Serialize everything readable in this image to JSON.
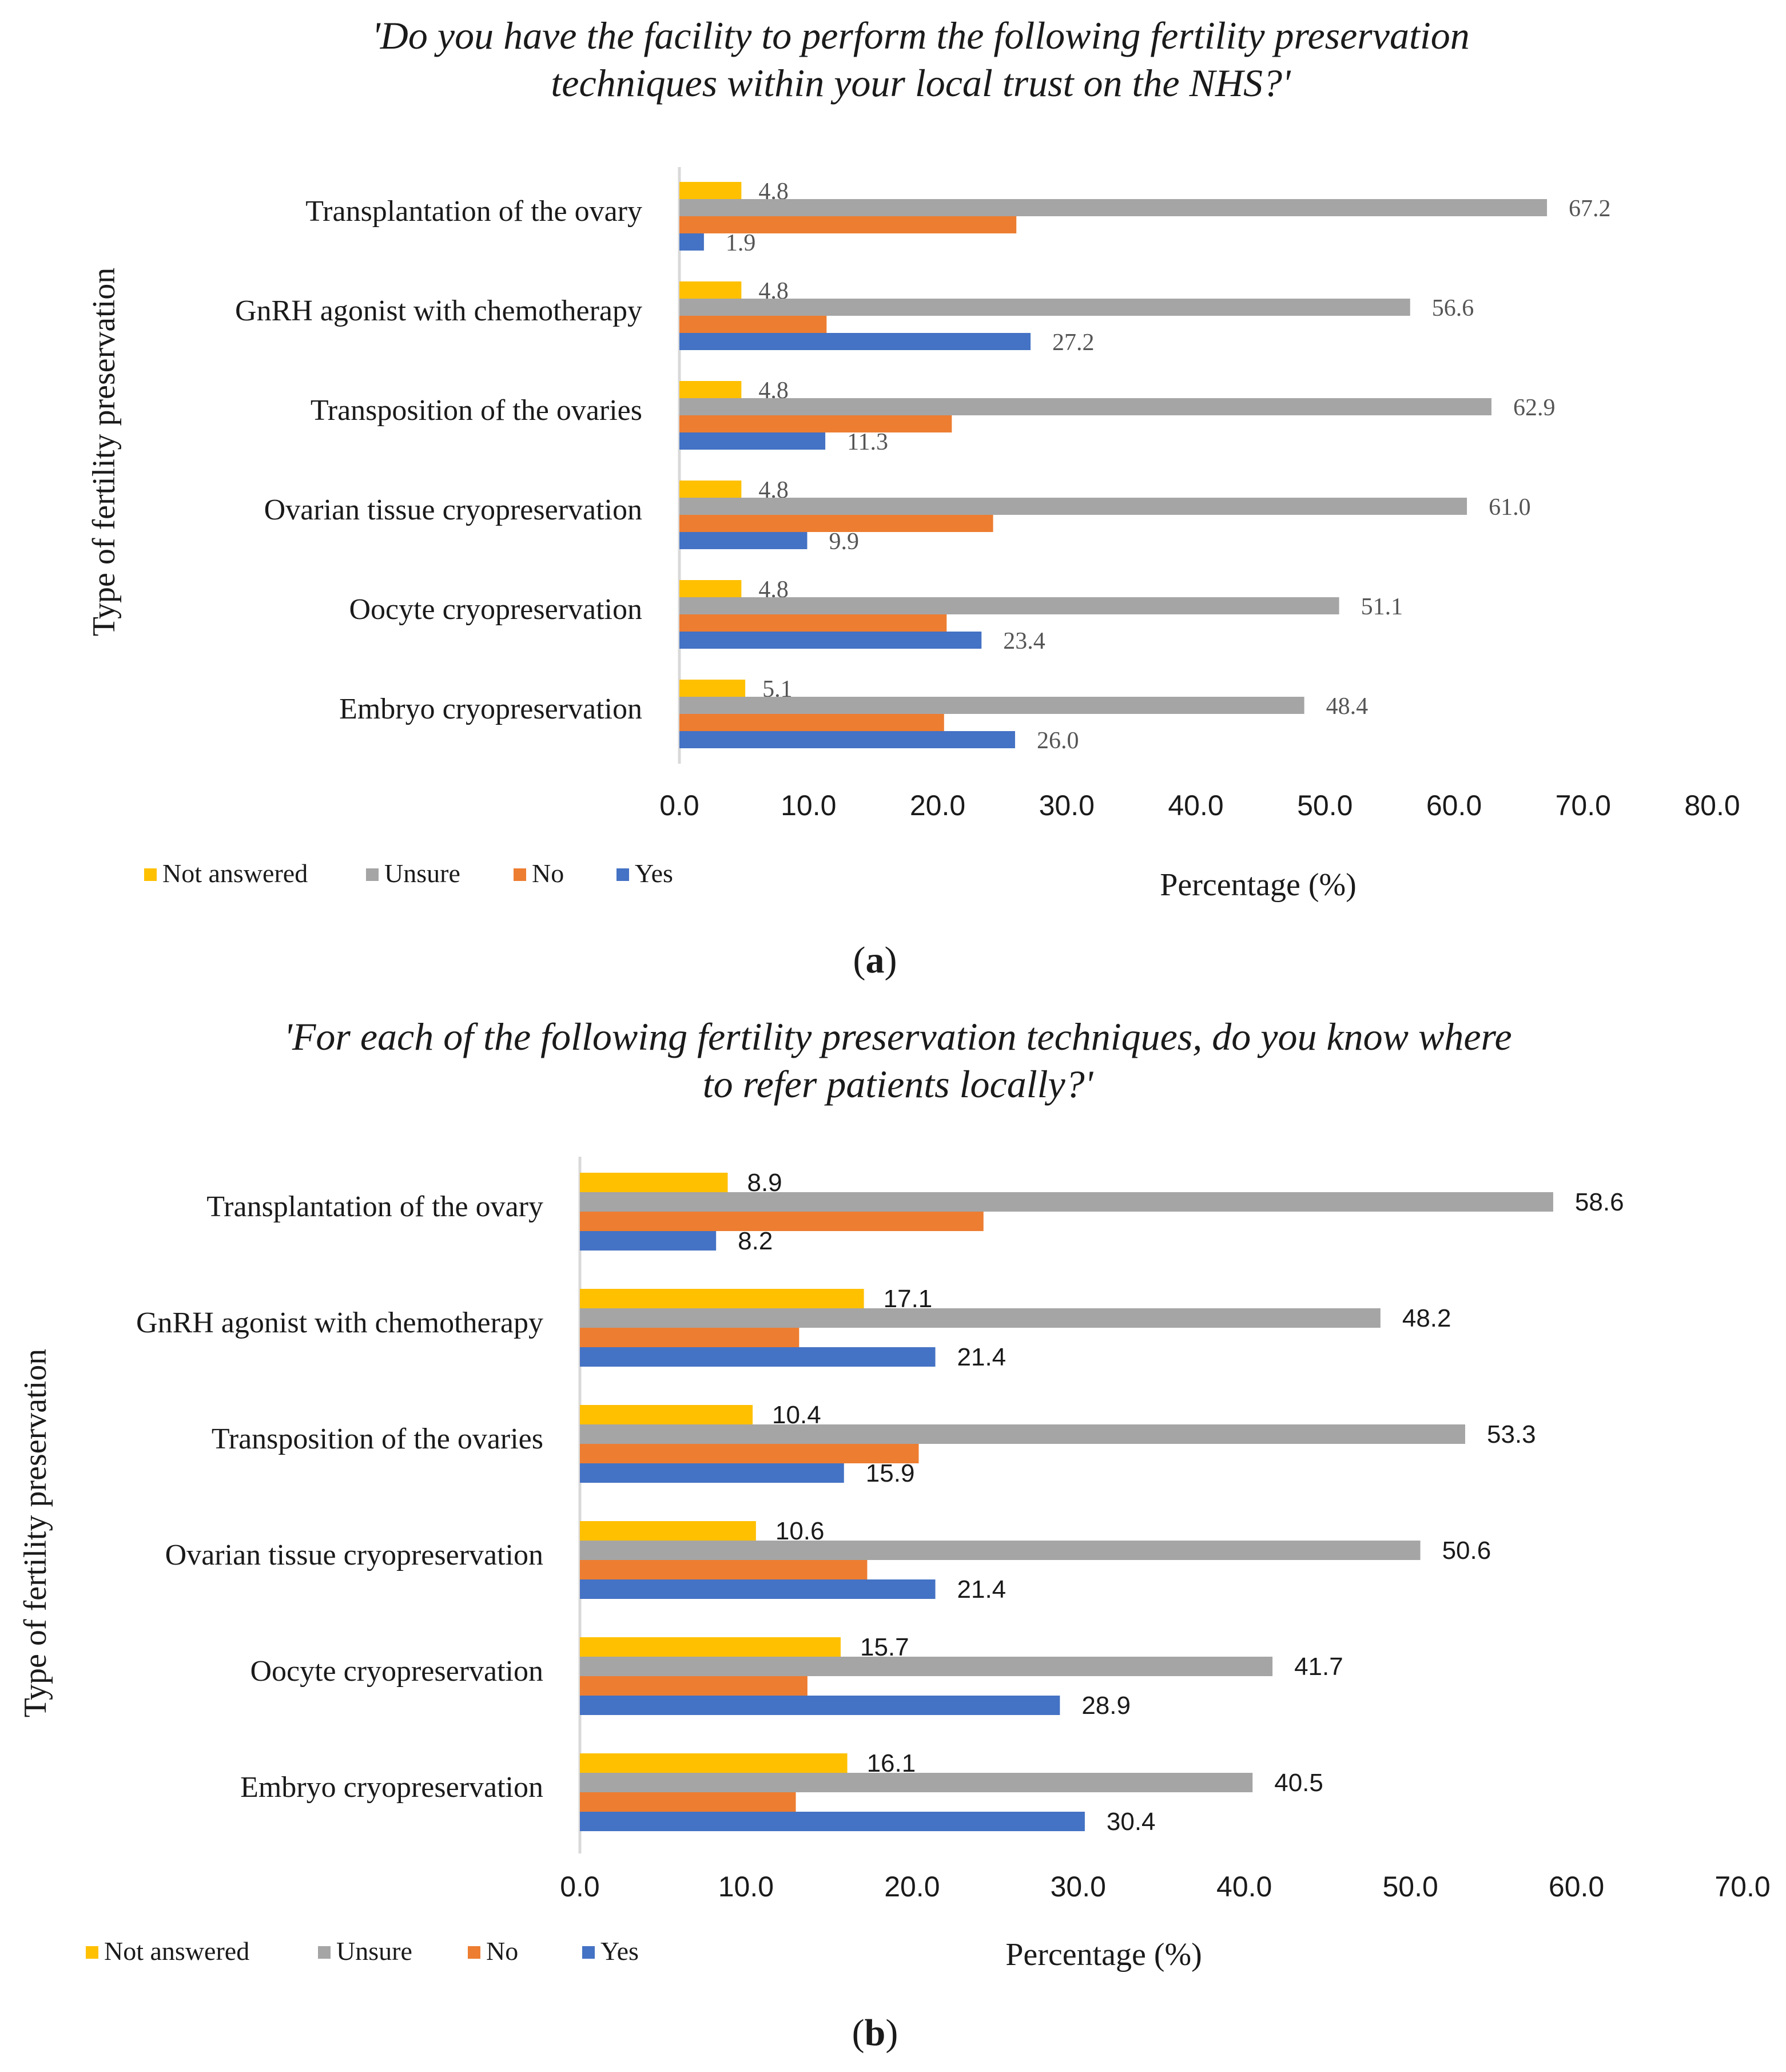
{
  "colors": {
    "not_answered": "#FFC000",
    "unsure": "#A5A5A5",
    "no": "#ED7D31",
    "yes": "#4472C4"
  },
  "legend": [
    "Not answered",
    "Unsure",
    "No",
    "Yes"
  ],
  "chart_data": [
    {
      "type": "bar",
      "orientation": "horizontal",
      "panel_label": "a",
      "title_line1": "'Do you have the facility to perform the following fertility preservation",
      "title_line2": "techniques within your local trust on the NHS?'",
      "xlabel": "Percentage (%)",
      "ylabel": "Type of fertility preservation",
      "xlim": [
        0,
        80
      ],
      "xticks": [
        "0.0",
        "10.0",
        "20.0",
        "30.0",
        "40.0",
        "50.0",
        "60.0",
        "70.0",
        "80.0"
      ],
      "legend_position": "bottom-left",
      "categories": [
        "Transplantation of the ovary",
        "GnRH agonist with chemotherapy",
        "Transposition of the ovaries",
        "Ovarian tissue cryopreservation",
        "Oocyte cryopreservation",
        "Embryo cryopreservation"
      ],
      "series": [
        {
          "name": "Not answered",
          "values": [
            4.8,
            4.8,
            4.8,
            4.8,
            4.8,
            5.1
          ],
          "labels": [
            "4.8",
            "4.8",
            "4.8",
            "4.8",
            "4.8",
            "5.1"
          ]
        },
        {
          "name": "Unsure",
          "values": [
            67.2,
            56.6,
            62.9,
            61.0,
            51.1,
            48.4
          ],
          "labels": [
            "67.2",
            "56.6",
            "62.9",
            "61.0",
            "51.1",
            "48.4"
          ]
        },
        {
          "name": "No",
          "values": [
            26.1,
            11.4,
            21.1,
            24.3,
            20.7,
            20.5
          ],
          "labels": [
            null,
            null,
            null,
            null,
            null,
            null
          ]
        },
        {
          "name": "Yes",
          "values": [
            1.9,
            27.2,
            11.3,
            9.9,
            23.4,
            26.0
          ],
          "labels": [
            "1.9",
            "27.2",
            "11.3",
            "9.9",
            "23.4",
            "26.0"
          ]
        }
      ]
    },
    {
      "type": "bar",
      "orientation": "horizontal",
      "panel_label": "b",
      "title_line1": "'For each of the following fertility preservation techniques, do you know where",
      "title_line2": "to refer patients locally?'",
      "xlabel": "Percentage (%)",
      "ylabel": "Type of fertility preservation",
      "xlim": [
        0,
        70
      ],
      "xticks": [
        "0.0",
        "10.0",
        "20.0",
        "30.0",
        "40.0",
        "50.0",
        "60.0",
        "70.0"
      ],
      "legend_position": "bottom-left",
      "categories": [
        "Transplantation of the ovary",
        "GnRH agonist with chemotherapy",
        "Transposition of the ovaries",
        "Ovarian tissue cryopreservation",
        "Oocyte cryopreservation",
        "Embryo cryopreservation"
      ],
      "series": [
        {
          "name": "Not answered",
          "values": [
            8.9,
            17.1,
            10.4,
            10.6,
            15.7,
            16.1
          ],
          "labels": [
            "8.9",
            "17.1",
            "10.4",
            "10.6",
            "15.7",
            "16.1"
          ]
        },
        {
          "name": "Unsure",
          "values": [
            58.6,
            48.2,
            53.3,
            50.6,
            41.7,
            40.5
          ],
          "labels": [
            "58.6",
            "48.2",
            "53.3",
            "50.6",
            "41.7",
            "40.5"
          ]
        },
        {
          "name": "No",
          "values": [
            24.3,
            13.2,
            20.4,
            17.3,
            13.7,
            13.0
          ],
          "labels": [
            null,
            null,
            null,
            null,
            null,
            null
          ]
        },
        {
          "name": "Yes",
          "values": [
            8.2,
            21.4,
            15.9,
            21.4,
            28.9,
            30.4
          ],
          "labels": [
            "8.2",
            "21.4",
            "15.9",
            "21.4",
            "28.9",
            "30.4"
          ]
        }
      ]
    }
  ]
}
